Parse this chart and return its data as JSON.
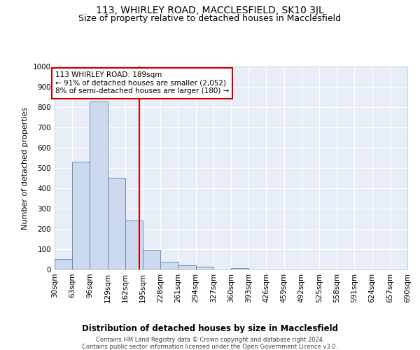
{
  "title": "113, WHIRLEY ROAD, MACCLESFIELD, SK10 3JL",
  "subtitle": "Size of property relative to detached houses in Macclesfield",
  "xlabel": "Distribution of detached houses by size in Macclesfield",
  "ylabel": "Number of detached properties",
  "footer_line1": "Contains HM Land Registry data © Crown copyright and database right 2024.",
  "footer_line2": "Contains public sector information licensed under the Open Government Licence v3.0.",
  "annotation_line1": "113 WHIRLEY ROAD: 189sqm",
  "annotation_line2": "← 91% of detached houses are smaller (2,052)",
  "annotation_line3": "8% of semi-detached houses are larger (180) →",
  "bar_edges": [
    30,
    63,
    96,
    129,
    162,
    195,
    228,
    261,
    294,
    327,
    360,
    393,
    426,
    459,
    492,
    525,
    558,
    591,
    624,
    657,
    690
  ],
  "bar_values": [
    53,
    530,
    827,
    452,
    242,
    98,
    37,
    22,
    13,
    0,
    8,
    0,
    0,
    0,
    0,
    0,
    0,
    0,
    0,
    0
  ],
  "bar_color": "#ccd9ee",
  "bar_edge_color": "#5b80b4",
  "vline_x": 189,
  "vline_color": "#cc0000",
  "annotation_box_color": "#cc0000",
  "ylim": [
    0,
    1000
  ],
  "yticks": [
    0,
    100,
    200,
    300,
    400,
    500,
    600,
    700,
    800,
    900,
    1000
  ],
  "plot_bg_color": "#e8eef8",
  "grid_color": "#ffffff",
  "fig_bg_color": "#ffffff",
  "title_fontsize": 10,
  "subtitle_fontsize": 9,
  "xlabel_fontsize": 8.5,
  "ylabel_fontsize": 8,
  "tick_fontsize": 7.5,
  "annotation_fontsize": 7.5,
  "footer_fontsize": 6
}
